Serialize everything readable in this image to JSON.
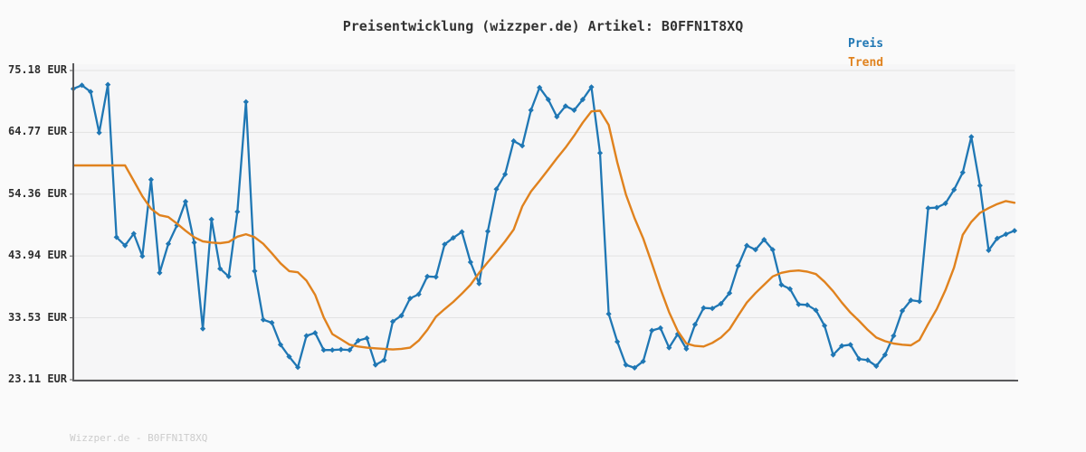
{
  "title": "Preisentwicklung (wizzper.de) Artikel: B0FFN1T8XQ",
  "legend": {
    "preis_label": "Preis",
    "trend_label": "Trend"
  },
  "watermark": "Wizzper.de - B0FFN1T8XQ",
  "colors": {
    "preis": "#1f77b4",
    "trend": "#e0821e",
    "grid": "#e2e2e2",
    "axis": "#59595b",
    "figure_bg": "#fafafa",
    "plot_bg": "#f6f6f7",
    "title_text": "#333333",
    "tick_text": "#2e2e2e",
    "watermark_text": "#cccccc"
  },
  "chart_data": {
    "type": "line",
    "title": "Preisentwicklung (wizzper.de) Artikel: B0FFN1T8XQ",
    "xlabel": "",
    "ylabel": "",
    "unit": "EUR",
    "grid": true,
    "legend_position": "top-right",
    "x_axis_labels_visible": false,
    "ylim": [
      23.11,
      75.18
    ],
    "y_ticks": [
      {
        "value": 75.18,
        "label": "75.18 EUR"
      },
      {
        "value": 64.77,
        "label": "64.77 EUR"
      },
      {
        "value": 54.36,
        "label": "54.36 EUR"
      },
      {
        "value": 43.94,
        "label": "43.94 EUR"
      },
      {
        "value": 33.53,
        "label": "33.53 EUR"
      },
      {
        "value": 23.11,
        "label": "23.11 EUR"
      }
    ],
    "series": [
      {
        "name": "Preis",
        "marker": "diamond",
        "values": [
          72.1,
          72.7,
          71.6,
          64.7,
          72.8,
          47.1,
          45.7,
          47.7,
          43.9,
          56.8,
          41.1,
          46.0,
          49.1,
          53.1,
          46.2,
          31.7,
          50.1,
          41.8,
          40.5,
          51.4,
          69.9,
          41.4,
          33.2,
          32.7,
          29.0,
          27.0,
          25.2,
          30.5,
          31.0,
          28.1,
          28.1,
          28.2,
          28.1,
          29.7,
          30.1,
          25.6,
          26.4,
          32.9,
          33.9,
          36.8,
          37.5,
          40.5,
          40.4,
          45.9,
          47.0,
          48.0,
          42.9,
          39.3,
          48.1,
          55.2,
          57.7,
          63.3,
          62.5,
          68.5,
          72.3,
          70.3,
          67.4,
          69.2,
          68.5,
          70.3,
          72.4,
          61.3,
          34.2,
          29.5,
          25.6,
          25.1,
          26.2,
          31.4,
          31.8,
          28.5,
          30.8,
          28.3,
          32.4,
          35.2,
          35.1,
          35.9,
          37.7,
          42.3,
          45.7,
          45.0,
          46.7,
          45.0,
          39.1,
          38.4,
          35.8,
          35.7,
          34.8,
          32.2,
          27.3,
          28.8,
          29.0,
          26.6,
          26.4,
          25.4,
          27.3,
          30.5,
          34.7,
          36.5,
          36.3,
          52.0,
          52.1,
          52.8,
          55.1,
          58.0,
          64.0,
          55.8,
          44.9,
          46.9,
          47.6,
          48.2
        ]
      },
      {
        "name": "Trend",
        "marker": null,
        "values": [
          59.2,
          59.2,
          59.2,
          59.2,
          59.2,
          59.2,
          59.2,
          56.6,
          54.0,
          51.9,
          50.8,
          50.5,
          49.4,
          48.2,
          47.1,
          46.4,
          46.2,
          46.1,
          46.3,
          47.2,
          47.6,
          47.1,
          46.0,
          44.4,
          42.7,
          41.4,
          41.2,
          39.8,
          37.4,
          33.6,
          30.8,
          29.9,
          29.0,
          28.7,
          28.5,
          28.4,
          28.3,
          28.2,
          28.3,
          28.5,
          29.7,
          31.5,
          33.7,
          35.0,
          36.2,
          37.6,
          39.1,
          41.1,
          42.9,
          44.6,
          46.4,
          48.4,
          52.3,
          54.8,
          56.6,
          58.5,
          60.4,
          62.2,
          64.2,
          66.4,
          68.3,
          68.4,
          66.0,
          59.7,
          54.3,
          50.3,
          46.9,
          42.7,
          38.4,
          34.5,
          31.3,
          29.2,
          28.8,
          28.7,
          29.3,
          30.2,
          31.6,
          33.9,
          36.1,
          37.7,
          39.1,
          40.5,
          41.1,
          41.4,
          41.5,
          41.3,
          40.9,
          39.6,
          38.0,
          36.1,
          34.4,
          33.0,
          31.5,
          30.2,
          29.6,
          29.2,
          29.0,
          28.9,
          29.8,
          32.5,
          35.0,
          38.2,
          42.0,
          47.5,
          49.7,
          51.2,
          52.0,
          52.7,
          53.2,
          52.9
        ]
      }
    ]
  }
}
